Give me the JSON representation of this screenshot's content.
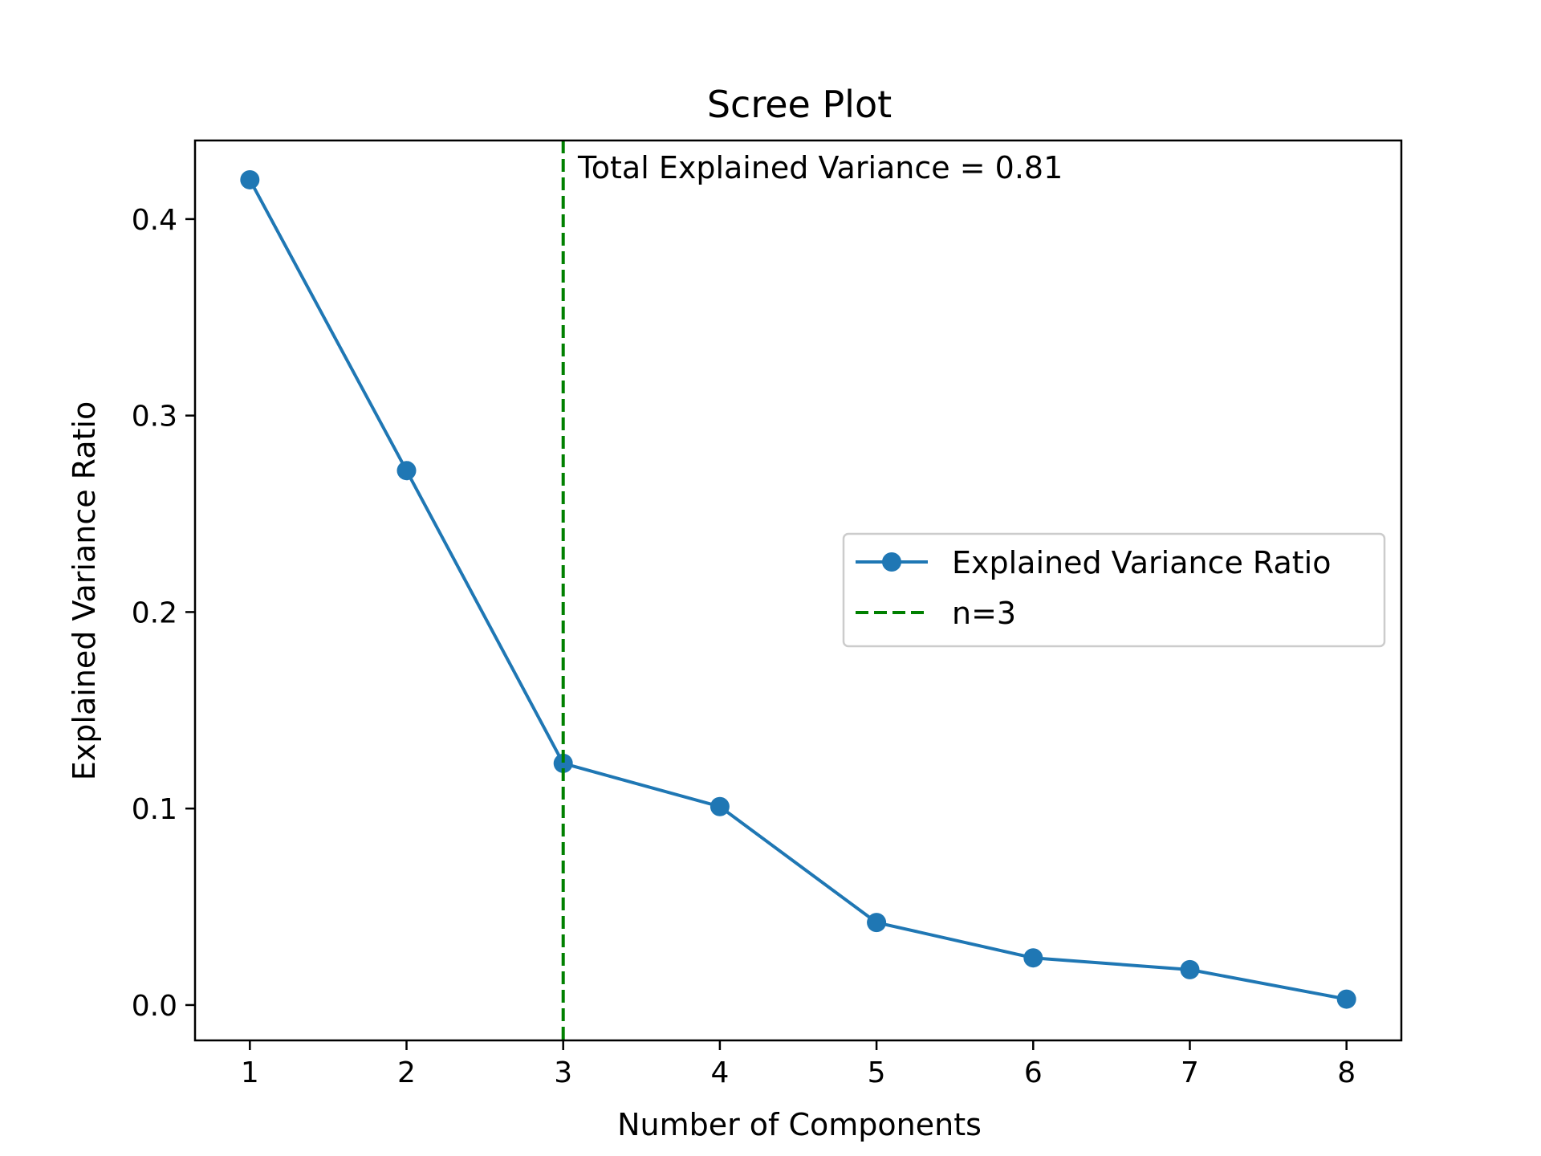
{
  "chart_data": {
    "type": "line",
    "title": "Scree Plot",
    "xlabel": "Number of Components",
    "ylabel": "Explained Variance Ratio",
    "xlim": [
      0.65,
      8.35
    ],
    "ylim": [
      -0.018,
      0.44
    ],
    "x_ticks": [
      1,
      2,
      3,
      4,
      5,
      6,
      7,
      8
    ],
    "x_tick_labels": [
      "1",
      "2",
      "3",
      "4",
      "5",
      "6",
      "7",
      "8"
    ],
    "y_ticks": [
      0.0,
      0.1,
      0.2,
      0.3,
      0.4
    ],
    "y_tick_labels": [
      "0.0",
      "0.1",
      "0.2",
      "0.3",
      "0.4"
    ],
    "grid": false,
    "series": [
      {
        "name": "Explained Variance Ratio",
        "color": "#1f77b4",
        "marker": "circle",
        "x": [
          1,
          2,
          3,
          4,
          5,
          6,
          7,
          8
        ],
        "values": [
          0.42,
          0.272,
          0.123,
          0.101,
          0.042,
          0.024,
          0.018,
          0.003
        ]
      }
    ],
    "vline": {
      "name": "n=3",
      "x": 3,
      "color": "#008000",
      "style": "dashed"
    },
    "annotation": {
      "text": "Total Explained Variance = 0.81",
      "color": "#008000"
    },
    "legend": {
      "placement": "center-right",
      "entries": [
        "Explained Variance Ratio",
        "n=3"
      ]
    }
  }
}
